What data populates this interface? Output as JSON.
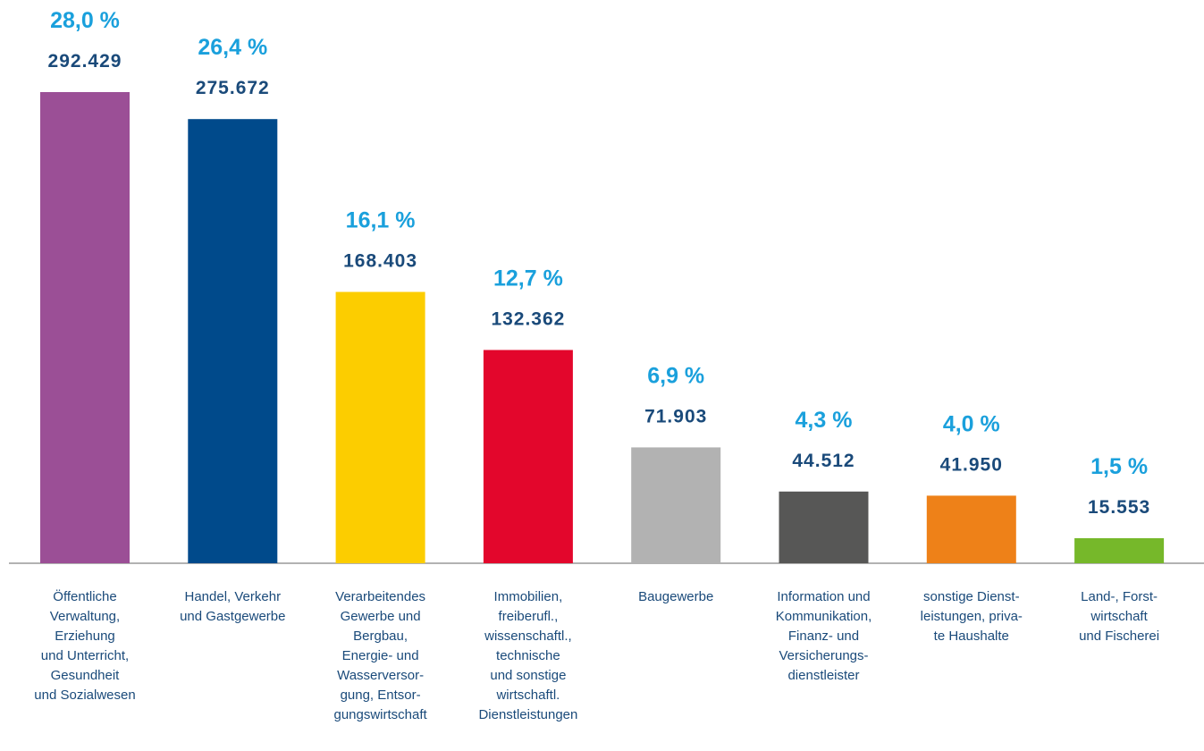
{
  "chart_data": {
    "type": "bar",
    "categories": [
      "Öffentliche\nVerwaltung,\nErziehung\nund Unterricht,\nGesundheit\nund Sozialwesen",
      "Handel, Verkehr\nund Gastgewerbe",
      "Verarbeitendes\nGewerbe und\nBergbau,\nEnergie- und\nWasserversor-\ngung, Entsor-\ngungswirtschaft",
      "Immobilien,\nfreiberufl.,\nwissenschaftl.,\ntechnische\nund sonstige\nwirtschaftl.\nDienstleistungen",
      "Baugewerbe",
      "Information und\nKommunikation,\nFinanz- und\nVersicherungs-\ndienstleister",
      "sonstige Dienst-\nleistungen, priva-\nte Haushalte",
      "Land-, Forst-\nwirtschaft\nund Fischerei"
    ],
    "values": [
      292429,
      275672,
      168403,
      132362,
      71903,
      44512,
      41950,
      15553
    ],
    "value_labels": [
      "292.429",
      "275.672",
      "168.403",
      "132.362",
      "71.903",
      "44.512",
      "41.950",
      "15.553"
    ],
    "percent_values": [
      28.0,
      26.4,
      16.1,
      12.7,
      6.9,
      4.3,
      4.0,
      1.5
    ],
    "percent_labels": [
      "28,0 %",
      "26,4 %",
      "16,1 %",
      "12,7 %",
      "6,9 %",
      "4,3 %",
      "4,0 %",
      "1,5 %"
    ],
    "colors": [
      "#9b4f96",
      "#004a8b",
      "#fccd00",
      "#e3062c",
      "#b2b2b2",
      "#575756",
      "#ee8118",
      "#76b82a"
    ]
  }
}
